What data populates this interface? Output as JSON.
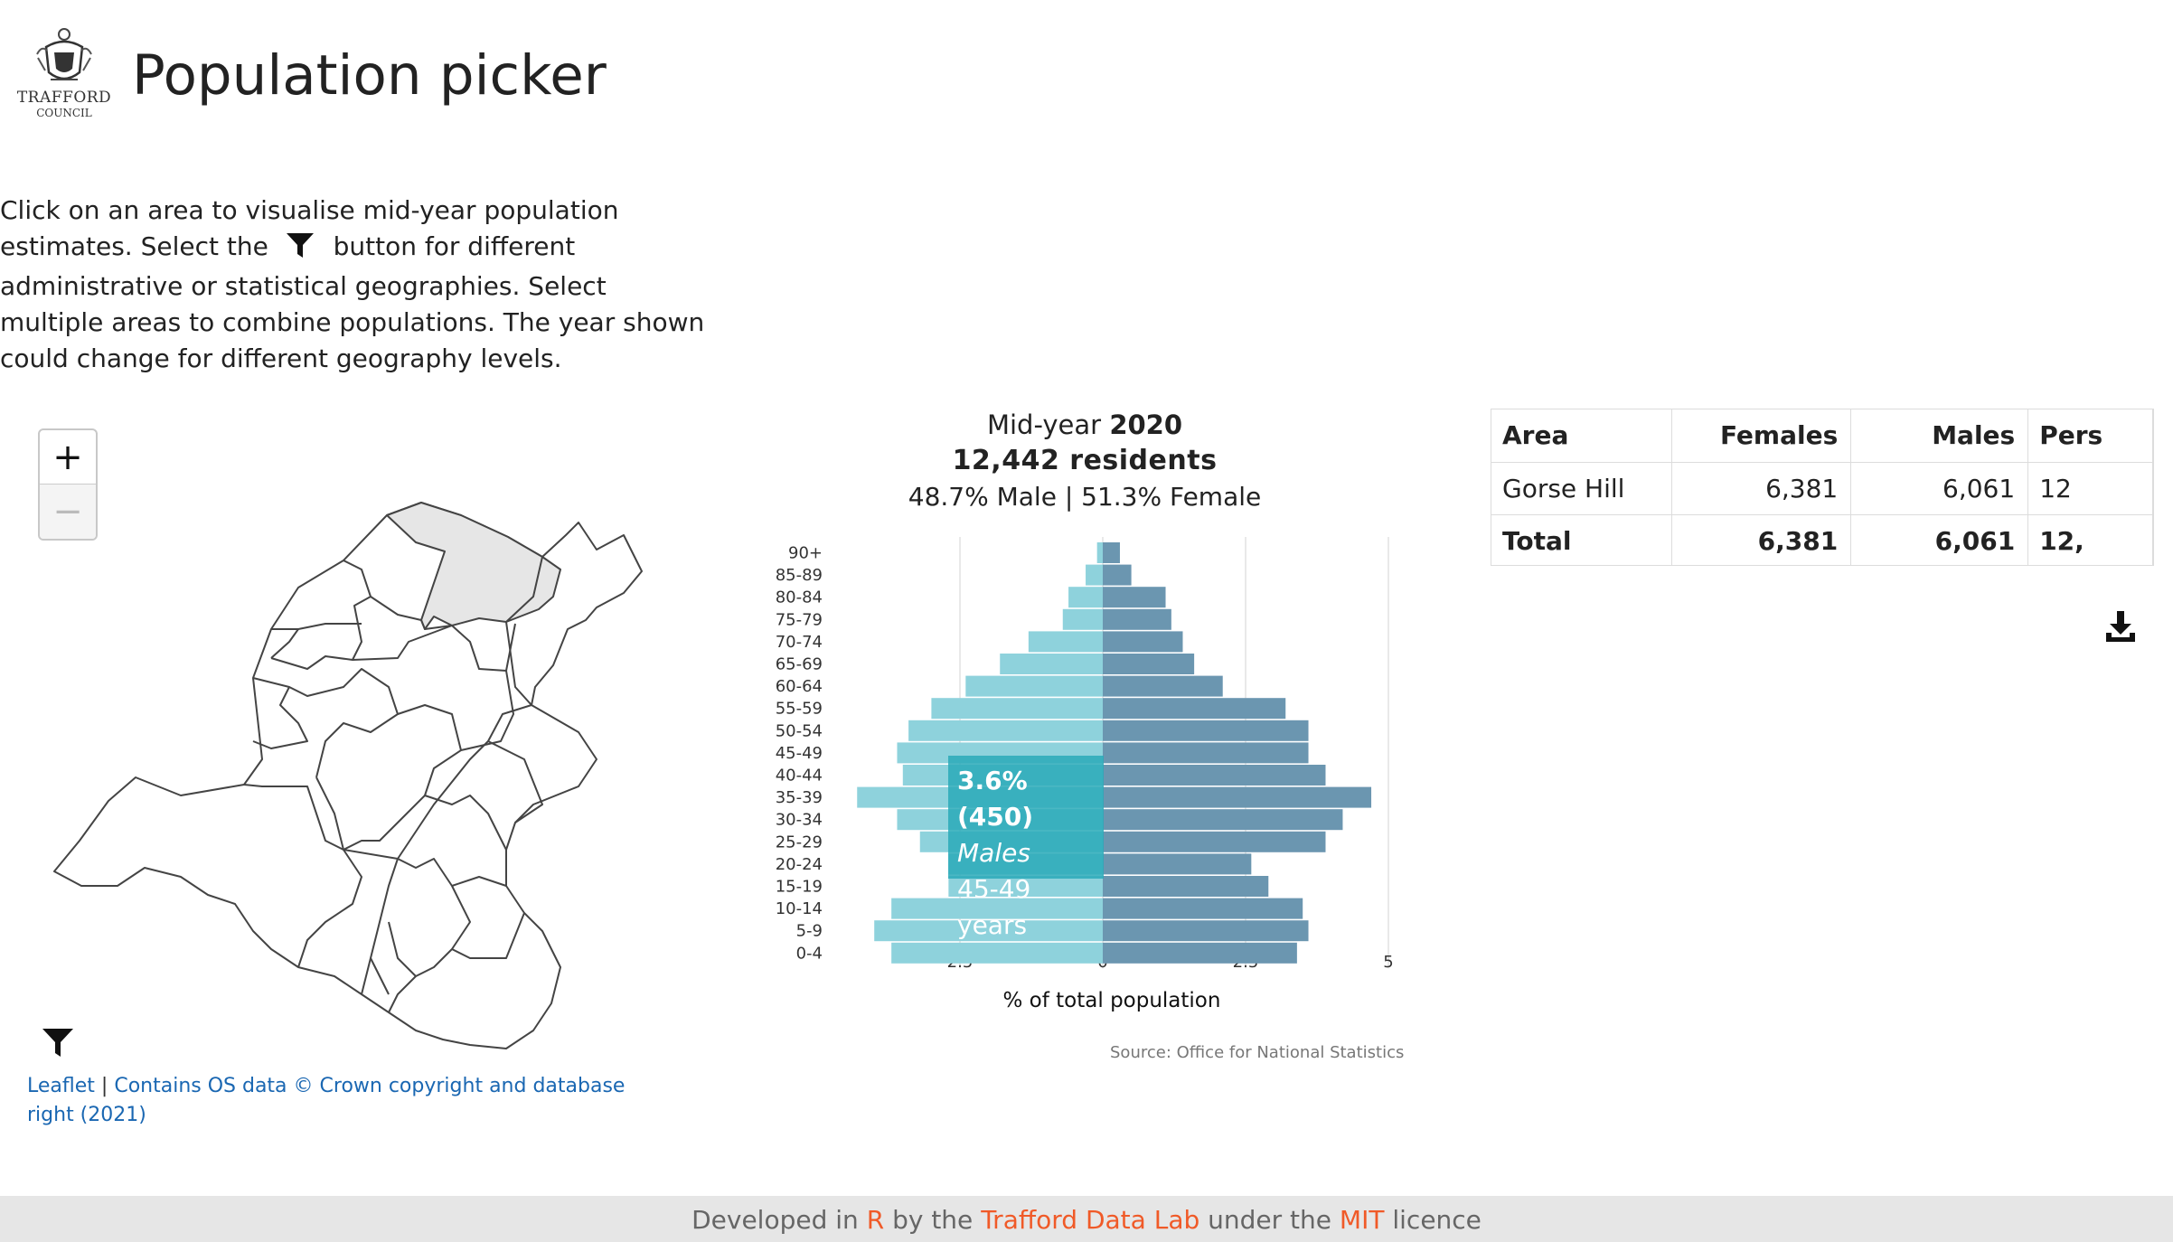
{
  "header": {
    "logo_line1": "TRAFFORD",
    "logo_line2": "COUNCIL",
    "title": "Population picker"
  },
  "intro": {
    "part1": "Click on an area to visualise mid-year population estimates. Select the",
    "part2": "button for different administrative or statistical geographies. Select multiple areas to combine populations. The year shown could change for different geography levels."
  },
  "map": {
    "zoom_in": "+",
    "zoom_out": "−",
    "attribution_leaflet": "Leaflet",
    "attribution_sep": "|",
    "attribution_os": "Contains OS data © Crown copyright and database right (2021)",
    "selected_fill": "#e6e6e6"
  },
  "chart": {
    "heading_prefix": "Mid-year",
    "year": "2020",
    "residents": "12,442 residents",
    "split": "48.7% Male | 51.3% Female",
    "source": "Source: Office for National Statistics",
    "tooltip": {
      "value": "3.6% (450)",
      "sex": "Males",
      "age": "45-49 years"
    }
  },
  "chart_data": {
    "type": "bar",
    "orientation": "horizontal-pyramid",
    "categories": [
      "0-4",
      "5-9",
      "10-14",
      "15-19",
      "20-24",
      "25-29",
      "30-34",
      "35-39",
      "40-44",
      "45-49",
      "50-54",
      "55-59",
      "60-64",
      "65-69",
      "70-74",
      "75-79",
      "80-84",
      "85-89",
      "90+"
    ],
    "series": [
      {
        "name": "Males",
        "color": "#8ed2dc",
        "values": [
          3.7,
          4.0,
          3.7,
          2.7,
          2.7,
          3.2,
          3.6,
          4.3,
          3.5,
          3.6,
          3.4,
          3.0,
          2.4,
          1.8,
          1.3,
          0.7,
          0.6,
          0.3,
          0.1
        ]
      },
      {
        "name": "Females",
        "color": "#6b96b0",
        "values": [
          3.4,
          3.6,
          3.5,
          2.9,
          2.6,
          3.9,
          4.2,
          4.7,
          3.9,
          3.6,
          3.6,
          3.2,
          2.1,
          1.6,
          1.4,
          1.2,
          1.1,
          0.5,
          0.3
        ]
      }
    ],
    "xticks": [
      "2.5",
      "0",
      "2.5",
      "5"
    ],
    "xlabel": "% of total population",
    "xlim": [
      -5,
      5
    ],
    "grid": true,
    "legend": "none"
  },
  "table": {
    "headers": [
      "Area",
      "Females",
      "Males",
      "Pers"
    ],
    "rows": [
      [
        "Gorse Hill",
        "6,381",
        "6,061",
        "12"
      ]
    ],
    "total": [
      "Total",
      "6,381",
      "6,061",
      "12,"
    ]
  },
  "footer": {
    "t1": "Developed in",
    "r": "R",
    "t2": "by the",
    "lab": "Trafford Data Lab",
    "t3": "under the",
    "mit": "MIT",
    "t4": "licence"
  }
}
